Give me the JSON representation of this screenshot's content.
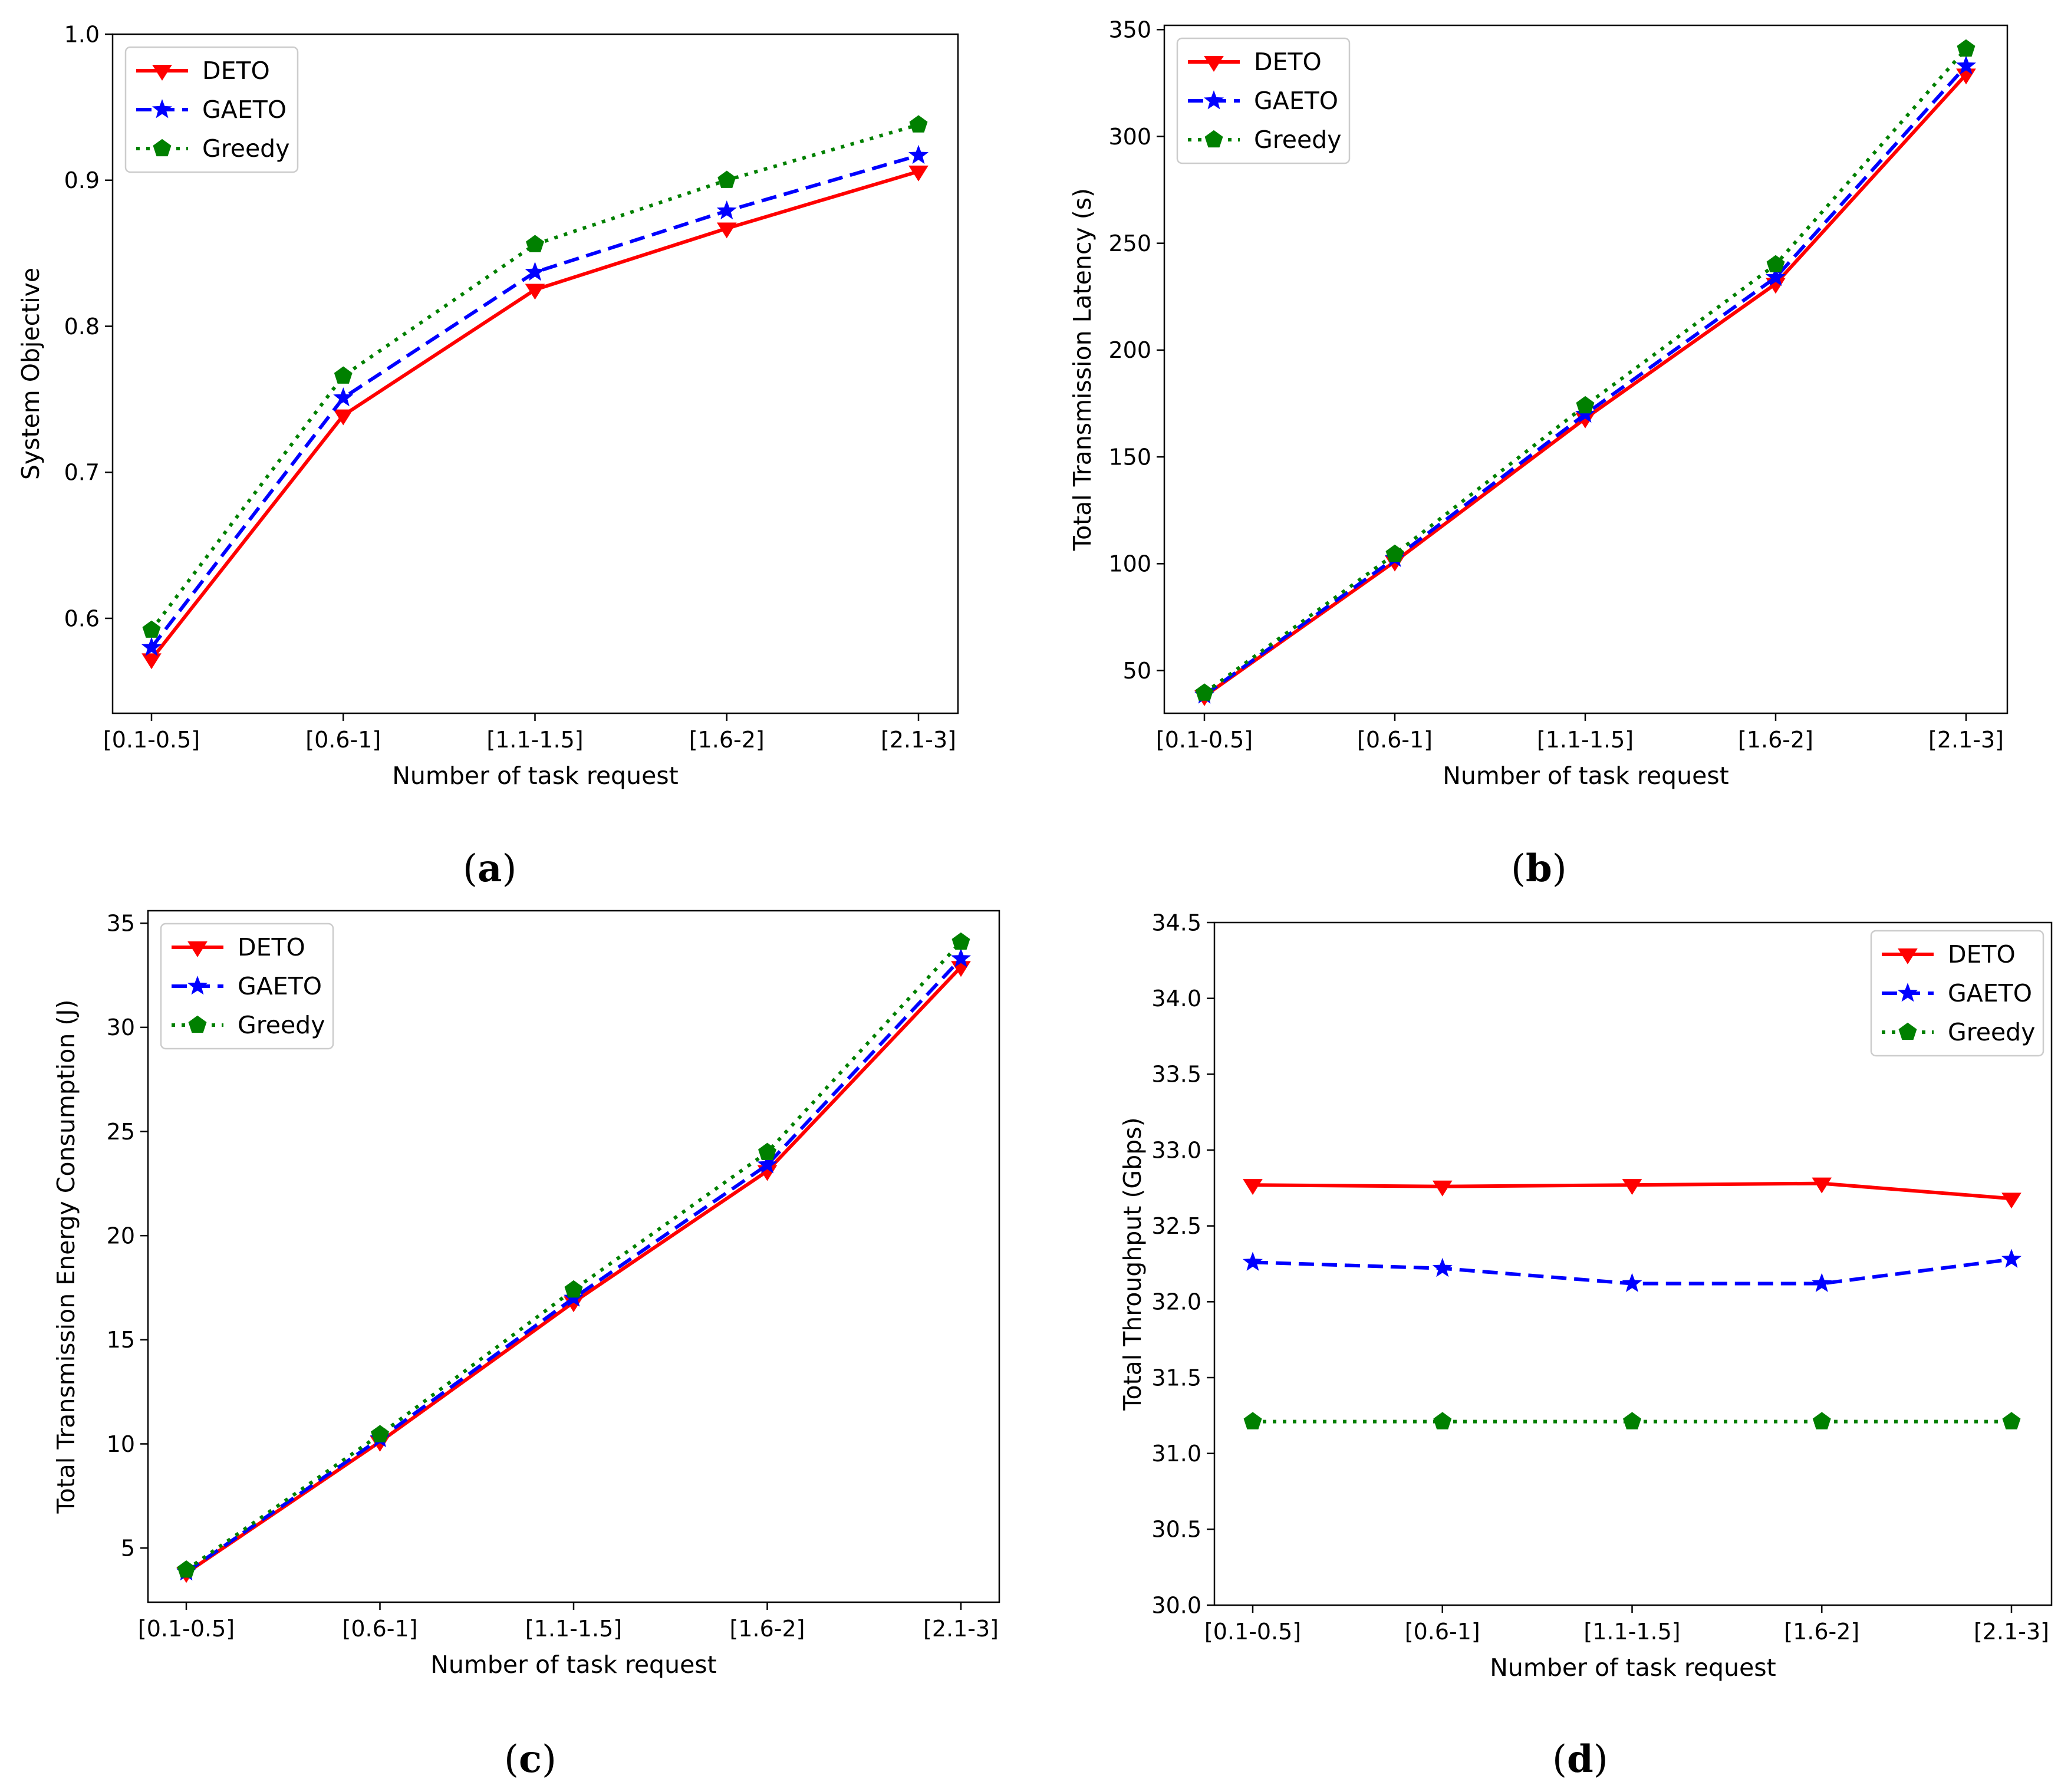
{
  "colors": {
    "deto": "#ff0000",
    "gaeto": "#0000ff",
    "greedy": "#008000",
    "axis": "#000000",
    "text": "#000000"
  },
  "captions": [
    "a",
    "b",
    "c",
    "d"
  ],
  "chart_data": [
    {
      "type": "line",
      "title": "",
      "xlabel": "Number of task request",
      "ylabel": "System Objective",
      "categories": [
        "[0.1-0.5]",
        "[0.6-1]",
        "[1.1-1.5]",
        "[1.6-2]",
        "[2.1-3]"
      ],
      "ylim": [
        0.535,
        1.0
      ],
      "yticks": [
        0.6,
        0.7,
        0.8,
        0.9,
        1.0
      ],
      "ytick_labels": [
        "0.6",
        "0.7",
        "0.8",
        "0.9",
        "1.0"
      ],
      "legend": "top-left",
      "series": [
        {
          "name": "DETO",
          "values": [
            0.572,
            0.739,
            0.825,
            0.867,
            0.906
          ]
        },
        {
          "name": "GAETO",
          "values": [
            0.58,
            0.751,
            0.837,
            0.879,
            0.917
          ]
        },
        {
          "name": "Greedy",
          "values": [
            0.592,
            0.766,
            0.856,
            0.9,
            0.938
          ]
        }
      ]
    },
    {
      "type": "line",
      "title": "",
      "xlabel": "Number of task request",
      "ylabel": "Total Transmission Latency (s)",
      "categories": [
        "[0.1-0.5]",
        "[0.6-1]",
        "[1.1-1.5]",
        "[1.6-2]",
        "[2.1-3]"
      ],
      "ylim": [
        30,
        352
      ],
      "yticks": [
        50,
        100,
        150,
        200,
        250,
        300,
        350
      ],
      "ytick_labels": [
        "50",
        "100",
        "150",
        "200",
        "250",
        "300",
        "350"
      ],
      "legend": "top-left",
      "series": [
        {
          "name": "DETO",
          "values": [
            38,
            101,
            168,
            231,
            329
          ]
        },
        {
          "name": "GAETO",
          "values": [
            38.5,
            102.5,
            170,
            234,
            333
          ]
        },
        {
          "name": "Greedy",
          "values": [
            39.5,
            104.5,
            174,
            240,
            341
          ]
        }
      ]
    },
    {
      "type": "line",
      "title": "",
      "xlabel": "Number of task request",
      "ylabel": "Total Transmission Energy Consumption (J)",
      "categories": [
        "[0.1-0.5]",
        "[0.6-1]",
        "[1.1-1.5]",
        "[1.6-2]",
        "[2.1-3]"
      ],
      "ylim": [
        2.4,
        35.6
      ],
      "yticks": [
        5,
        10,
        15,
        20,
        25,
        30,
        35
      ],
      "ytick_labels": [
        "5",
        "10",
        "15",
        "20",
        "25",
        "30",
        "35"
      ],
      "legend": "top-left",
      "series": [
        {
          "name": "DETO",
          "values": [
            3.8,
            10.1,
            16.8,
            23.1,
            32.9
          ]
        },
        {
          "name": "GAETO",
          "values": [
            3.85,
            10.25,
            17.0,
            23.4,
            33.3
          ]
        },
        {
          "name": "Greedy",
          "values": [
            3.95,
            10.45,
            17.4,
            24.0,
            34.1
          ]
        }
      ]
    },
    {
      "type": "line",
      "title": "",
      "xlabel": "Number of task request",
      "ylabel": "Total Throughput (Gbps)",
      "categories": [
        "[0.1-0.5]",
        "[0.6-1]",
        "[1.1-1.5]",
        "[1.6-2]",
        "[2.1-3]"
      ],
      "ylim": [
        30.0,
        34.5
      ],
      "yticks": [
        30.0,
        30.5,
        31.0,
        31.5,
        32.0,
        32.5,
        33.0,
        33.5,
        34.0,
        34.5
      ],
      "ytick_labels": [
        "30.0",
        "30.5",
        "31.0",
        "31.5",
        "32.0",
        "32.5",
        "33.0",
        "33.5",
        "34.0",
        "34.5"
      ],
      "legend": "top-right",
      "series": [
        {
          "name": "DETO",
          "values": [
            32.77,
            32.76,
            32.77,
            32.78,
            32.68
          ]
        },
        {
          "name": "GAETO",
          "values": [
            32.26,
            32.22,
            32.12,
            32.12,
            32.28
          ]
        },
        {
          "name": "Greedy",
          "values": [
            31.21,
            31.21,
            31.21,
            31.21,
            31.21
          ]
        }
      ]
    }
  ]
}
